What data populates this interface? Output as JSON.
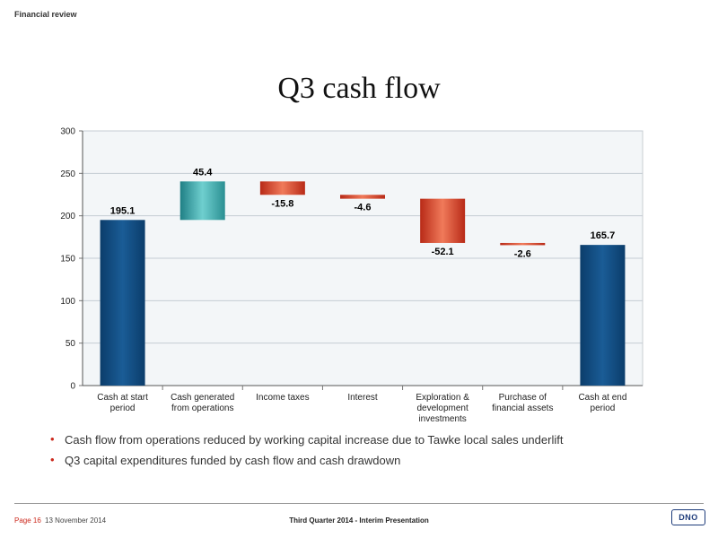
{
  "header": {
    "section": "Financial review"
  },
  "slide": {
    "title": "Q3 cash flow"
  },
  "chart_data": {
    "type": "bar",
    "subtype": "waterfall",
    "title": "",
    "xlabel": "",
    "ylabel": "",
    "ylim": [
      0,
      300
    ],
    "yticks": [
      "0",
      "50",
      "100",
      "150",
      "200",
      "250",
      "300"
    ],
    "ytick_values": [
      0,
      50,
      100,
      150,
      200,
      250,
      300
    ],
    "grid": true,
    "legend": "none",
    "categories": [
      [
        "Cash at start",
        "period"
      ],
      [
        "Cash generated",
        "from operations"
      ],
      [
        "Income taxes"
      ],
      [
        "Interest"
      ],
      [
        "Exploration &",
        "development",
        "investments"
      ],
      [
        "Purchase of",
        "financial assets"
      ],
      [
        "Cash at end",
        "period"
      ]
    ],
    "values": [
      195.1,
      45.4,
      -15.8,
      -4.6,
      -52.1,
      -2.6,
      165.7
    ],
    "value_labels": [
      "195.1",
      "45.4",
      "-15.8",
      "-4.6",
      "-52.1",
      "-2.6",
      "165.7"
    ],
    "bar_kind": [
      "total",
      "increase",
      "decrease",
      "decrease",
      "decrease",
      "decrease",
      "total"
    ],
    "colors": {
      "total": "#1a5c96",
      "increase": "#3aa6a6",
      "decrease": "#d63a26"
    }
  },
  "bullets": [
    "Cash flow from operations reduced by working capital increase due to Tawke local sales underlift",
    "Q3 capital expenditures funded by cash flow and cash drawdown"
  ],
  "bullet_glyph": "•",
  "footer": {
    "page": "Page 16",
    "date": "13 November 2014",
    "center": "Third Quarter 2014 - Interim Presentation",
    "logo_text": "DNO"
  },
  "theme": {
    "accent": "#cc2a1e",
    "logo_blue": "#1d3b7a"
  }
}
